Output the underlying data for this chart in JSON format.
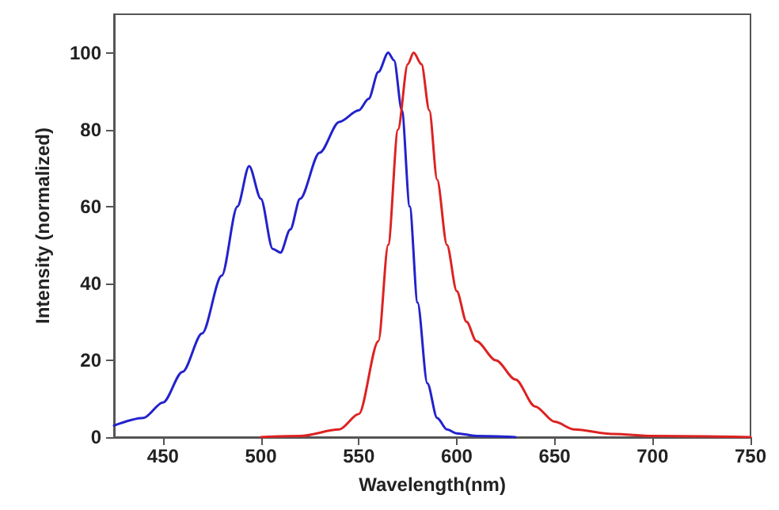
{
  "chart_data": {
    "type": "line",
    "xlabel": "Wavelength(nm)",
    "ylabel": "Intensity (normalized)",
    "xlim": [
      425,
      750
    ],
    "xticks": [
      450,
      500,
      550,
      600,
      650,
      700,
      750
    ],
    "ylim": [
      0,
      110
    ],
    "yticks": [
      0,
      20,
      40,
      60,
      80,
      100
    ],
    "grid": false,
    "marker": "none",
    "line_style": "solid",
    "series": [
      {
        "color": "#2222cc",
        "x": [
          425,
          440,
          450,
          460,
          470,
          480,
          488,
          494,
          500,
          506,
          510,
          515,
          520,
          530,
          540,
          550,
          555,
          560,
          565,
          568,
          572,
          576,
          580,
          585,
          590,
          595,
          600,
          610,
          630
        ],
        "values": [
          3,
          5,
          9,
          17,
          27,
          42,
          60,
          70.5,
          62,
          49,
          48,
          54,
          62,
          74,
          82,
          85,
          88,
          95,
          100,
          98,
          85,
          60,
          35,
          14,
          5,
          2,
          1,
          0.3,
          0
        ]
      },
      {
        "color": "#dd2222",
        "x": [
          500,
          520,
          540,
          550,
          560,
          565,
          570,
          575,
          578,
          582,
          586,
          590,
          595,
          600,
          605,
          610,
          620,
          630,
          640,
          650,
          660,
          680,
          700,
          750
        ],
        "values": [
          0,
          0.3,
          2,
          6,
          25,
          50,
          80,
          97,
          100,
          97,
          85,
          67,
          50,
          38,
          30,
          25,
          20,
          15,
          8,
          4,
          2,
          0.8,
          0.3,
          0
        ]
      }
    ]
  }
}
